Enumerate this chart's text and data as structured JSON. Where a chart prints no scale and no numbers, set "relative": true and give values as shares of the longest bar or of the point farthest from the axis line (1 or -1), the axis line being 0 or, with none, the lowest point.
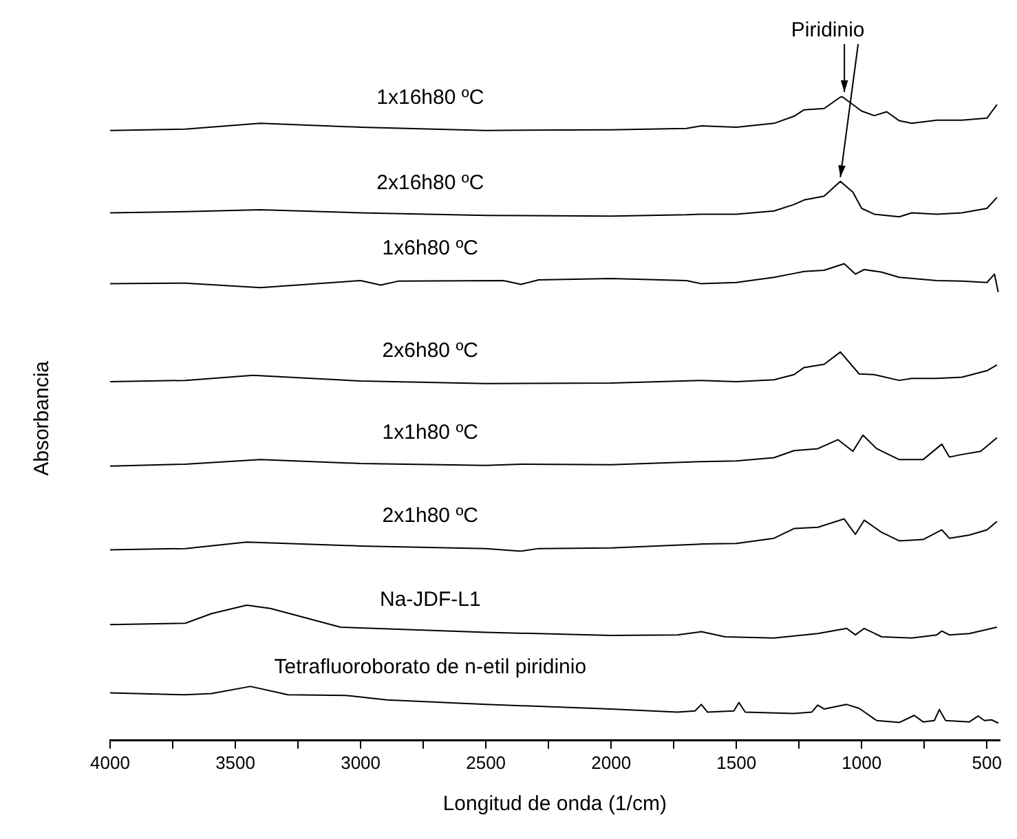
{
  "chart_data": {
    "type": "line",
    "relative": true,
    "xlabel": "Longitud de onda (1/cm)",
    "ylabel": "Absorbancia",
    "xlim": [
      4000,
      450
    ],
    "xticks": [
      4000,
      {
        "value": 3750,
        "label": null
      },
      3500,
      {
        "value": 3250,
        "label": null
      },
      3000,
      {
        "value": 2750,
        "label": null
      },
      2500,
      {
        "value": 2250,
        "label": null
      },
      2000,
      {
        "value": 1750,
        "label": null
      },
      1500,
      {
        "value": 1250,
        "label": null
      },
      1000,
      {
        "value": 750,
        "label": null
      },
      500
    ],
    "marker": "none",
    "line_style": "solid",
    "legend": false,
    "grid": false,
    "annotations": [
      {
        "text": "Piridinio",
        "x": 1080,
        "y": 1.0
      }
    ],
    "series": [
      {
        "name": "1x16h80 ºC",
        "color": "#000000",
        "x": [
          4000,
          3700,
          3400,
          3000,
          2500,
          2000,
          1700,
          1640,
          1500,
          1350,
          1270,
          1230,
          1150,
          1080,
          1000,
          950,
          900,
          850,
          800,
          700,
          600,
          500,
          460
        ],
        "values": [
          0.947,
          0.949,
          0.958,
          0.952,
          0.947,
          0.948,
          0.95,
          0.954,
          0.952,
          0.958,
          0.969,
          0.979,
          0.981,
          1.0,
          0.977,
          0.97,
          0.976,
          0.962,
          0.958,
          0.963,
          0.963,
          0.966,
          0.987
        ]
      },
      {
        "name": "2x16h80 ºC",
        "color": "#000000",
        "x": [
          4000,
          3700,
          3400,
          3000,
          2500,
          2000,
          1700,
          1640,
          1500,
          1350,
          1270,
          1230,
          1150,
          1085,
          1035,
          1000,
          950,
          850,
          800,
          700,
          600,
          500,
          460
        ],
        "values": [
          0.819,
          0.821,
          0.824,
          0.819,
          0.815,
          0.814,
          0.816,
          0.817,
          0.817,
          0.822,
          0.832,
          0.839,
          0.845,
          0.868,
          0.851,
          0.826,
          0.817,
          0.813,
          0.819,
          0.817,
          0.819,
          0.826,
          0.843
        ]
      },
      {
        "name": "1x6h80 ºC",
        "color": "#000000",
        "x": [
          4000,
          3700,
          3400,
          3000,
          2920,
          2850,
          2430,
          2360,
          2290,
          2000,
          1700,
          1640,
          1500,
          1350,
          1270,
          1230,
          1150,
          1070,
          1025,
          990,
          920,
          850,
          700,
          600,
          500,
          470,
          455
        ],
        "values": [
          0.709,
          0.71,
          0.703,
          0.714,
          0.707,
          0.713,
          0.714,
          0.708,
          0.715,
          0.717,
          0.714,
          0.709,
          0.711,
          0.719,
          0.725,
          0.728,
          0.73,
          0.74,
          0.724,
          0.731,
          0.727,
          0.719,
          0.714,
          0.713,
          0.711,
          0.724,
          0.696
        ]
      },
      {
        "name": "2x6h80 ºC",
        "color": "#000000",
        "x": [
          4000,
          3700,
          3430,
          3000,
          2500,
          2000,
          1640,
          1500,
          1350,
          1270,
          1230,
          1150,
          1085,
          1010,
          950,
          850,
          800,
          700,
          600,
          500,
          460
        ],
        "values": [
          0.557,
          0.559,
          0.567,
          0.558,
          0.554,
          0.555,
          0.559,
          0.557,
          0.56,
          0.568,
          0.579,
          0.584,
          0.603,
          0.569,
          0.568,
          0.559,
          0.562,
          0.562,
          0.564,
          0.574,
          0.583
        ]
      },
      {
        "name": "1x1h80 ºC",
        "color": "#000000",
        "x": [
          4000,
          3700,
          3400,
          3000,
          2500,
          2360,
          2000,
          1640,
          1500,
          1350,
          1270,
          1175,
          1095,
          1035,
          995,
          940,
          850,
          755,
          680,
          650,
          600,
          525,
          460
        ],
        "values": [
          0.426,
          0.429,
          0.436,
          0.43,
          0.427,
          0.429,
          0.428,
          0.433,
          0.434,
          0.439,
          0.45,
          0.453,
          0.467,
          0.449,
          0.474,
          0.453,
          0.436,
          0.436,
          0.46,
          0.44,
          0.444,
          0.449,
          0.47
        ]
      },
      {
        "name": "2x1h80 ºC",
        "color": "#000000",
        "x": [
          4000,
          3700,
          3455,
          3000,
          2500,
          2360,
          2290,
          2000,
          1640,
          1500,
          1350,
          1270,
          1175,
          1070,
          1025,
          990,
          920,
          850,
          755,
          680,
          650,
          570,
          500,
          460
        ],
        "values": [
          0.296,
          0.298,
          0.308,
          0.302,
          0.298,
          0.294,
          0.298,
          0.299,
          0.305,
          0.306,
          0.314,
          0.329,
          0.331,
          0.344,
          0.32,
          0.342,
          0.323,
          0.31,
          0.312,
          0.327,
          0.314,
          0.319,
          0.327,
          0.34
        ]
      },
      {
        "name": "Na-JDF-L1",
        "color": "#000000",
        "x": [
          4000,
          3700,
          3595,
          3455,
          3360,
          3080,
          2500,
          2000,
          1735,
          1640,
          1545,
          1350,
          1175,
          1060,
          1025,
          990,
          920,
          800,
          700,
          680,
          650,
          570,
          460
        ],
        "values": [
          0.18,
          0.182,
          0.197,
          0.21,
          0.205,
          0.176,
          0.168,
          0.163,
          0.164,
          0.169,
          0.161,
          0.159,
          0.166,
          0.174,
          0.164,
          0.174,
          0.161,
          0.159,
          0.164,
          0.17,
          0.164,
          0.166,
          0.176
        ]
      },
      {
        "name": "Tetrafluoroborato de n-etil piridinio",
        "color": "#000000",
        "x": [
          4000,
          3700,
          3595,
          3440,
          3290,
          3060,
          2895,
          2500,
          2000,
          1735,
          1665,
          1640,
          1615,
          1510,
          1490,
          1465,
          1270,
          1200,
          1175,
          1150,
          1060,
          1010,
          940,
          850,
          790,
          755,
          710,
          690,
          665,
          570,
          535,
          510,
          480,
          455
        ],
        "values": [
          0.074,
          0.071,
          0.073,
          0.084,
          0.071,
          0.07,
          0.063,
          0.056,
          0.049,
          0.044,
          0.046,
          0.056,
          0.044,
          0.046,
          0.059,
          0.044,
          0.042,
          0.044,
          0.055,
          0.049,
          0.056,
          0.05,
          0.031,
          0.028,
          0.039,
          0.029,
          0.031,
          0.048,
          0.031,
          0.029,
          0.038,
          0.031,
          0.032,
          0.027
        ]
      }
    ]
  }
}
